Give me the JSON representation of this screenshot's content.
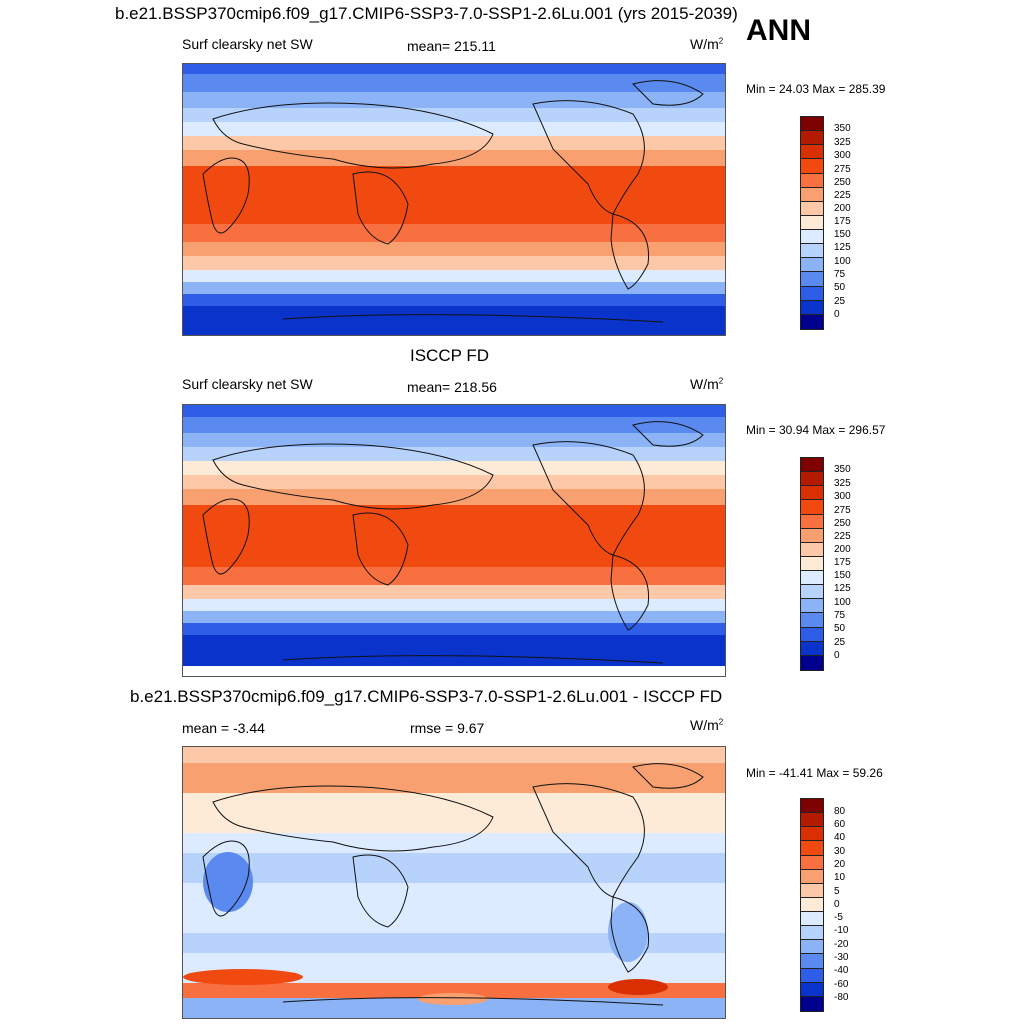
{
  "header": {
    "title_top": "b.e21.BSSP370cmip6.f09_g17.CMIP6-SSP3-7.0-SSP1-2.6Lu.001 (yrs 2015-2039)",
    "season": "ANN"
  },
  "panel1": {
    "variable": "Surf clearsky net SW",
    "mean_label": "mean= 215.11",
    "units": "W/m",
    "units_sup": "2",
    "minmax": "Min =  24.03 Max = 285.39",
    "levels": [
      "350",
      "325",
      "300",
      "275",
      "250",
      "225",
      "200",
      "175",
      "150",
      "125",
      "100",
      "75",
      "50",
      "25",
      "0"
    ]
  },
  "panel2": {
    "title": "ISCCP FD",
    "variable": "Surf clearsky net SW",
    "mean_label": "mean= 218.56",
    "units": "W/m",
    "units_sup": "2",
    "minmax": "Min =  30.94 Max = 296.57",
    "levels": [
      "350",
      "325",
      "300",
      "275",
      "250",
      "225",
      "200",
      "175",
      "150",
      "125",
      "100",
      "75",
      "50",
      "25",
      "0"
    ]
  },
  "panel3": {
    "title": "b.e21.BSSP370cmip6.f09_g17.CMIP6-SSP3-7.0-SSP1-2.6Lu.001 - ISCCP FD",
    "mean_label": "mean =  -3.44",
    "rmse_label": "rmse =   9.67",
    "units": "W/m",
    "units_sup": "2",
    "minmax": "Min = -41.41 Max =  59.26",
    "levels": [
      "80",
      "60",
      "40",
      "30",
      "20",
      "10",
      "5",
      "0",
      "-5",
      "-10",
      "-20",
      "-30",
      "-40",
      "-60",
      "-80"
    ]
  },
  "colors": {
    "abs_palette": [
      "#7f0000",
      "#b41a00",
      "#d83000",
      "#f04a10",
      "#f87040",
      "#f8a070",
      "#fcc8a8",
      "#fdebd8",
      "#dcebff",
      "#b7d3fb",
      "#8cb3f6",
      "#5a8af0",
      "#2e5de8",
      "#0a33cc",
      "#00008c"
    ],
    "diff_palette": [
      "#7f0000",
      "#b41a00",
      "#d83000",
      "#f04a10",
      "#f87040",
      "#f8a070",
      "#fcc8a8",
      "#fdebd8",
      "#dcebff",
      "#b7d3fb",
      "#8cb3f6",
      "#5a8af0",
      "#2e5de8",
      "#0a33cc",
      "#00008c"
    ]
  }
}
